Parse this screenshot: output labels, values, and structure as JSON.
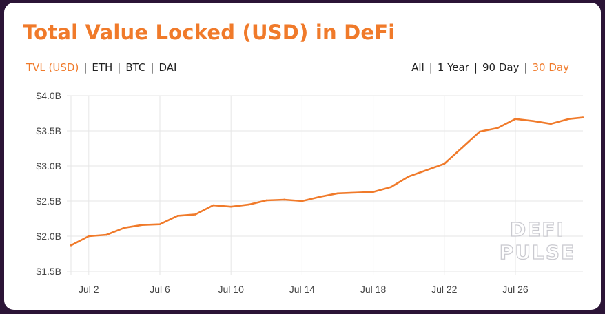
{
  "title": "Total Value Locked (USD) in DeFi",
  "metric_tabs": [
    {
      "label": "TVL (USD)",
      "active": true
    },
    {
      "label": "ETH",
      "active": false
    },
    {
      "label": "BTC",
      "active": false
    },
    {
      "label": "DAI",
      "active": false
    }
  ],
  "range_tabs": [
    {
      "label": "All",
      "active": false
    },
    {
      "label": "1 Year",
      "active": false
    },
    {
      "label": "90 Day",
      "active": false
    },
    {
      "label": "30 Day",
      "active": true
    }
  ],
  "watermark": [
    "DEFI",
    "PULSE"
  ],
  "colors": {
    "accent": "#f07a2a",
    "line": "#f07a2a",
    "grid": "#e6e6e6",
    "frame": "#2b1436"
  },
  "chart_data": {
    "type": "line",
    "title": "Total Value Locked (USD) in DeFi",
    "xlabel": "",
    "ylabel": "",
    "ylim": [
      1.5,
      4.0
    ],
    "y_ticks": [
      1.5,
      2.0,
      2.5,
      3.0,
      3.5,
      4.0
    ],
    "y_tick_labels": [
      "$1.5B",
      "$2.0B",
      "$2.5B",
      "$3.0B",
      "$3.5B",
      "$4.0B"
    ],
    "x_ticks": [
      2,
      6,
      10,
      14,
      18,
      22,
      26
    ],
    "x_tick_labels": [
      "Jul 2",
      "Jul 6",
      "Jul 10",
      "Jul 14",
      "Jul 18",
      "Jul 22",
      "Jul 26"
    ],
    "x_unit": "July day",
    "xlim": [
      1,
      29.8
    ],
    "grid": true,
    "series": [
      {
        "x": [
          1,
          2,
          3,
          4,
          5,
          6,
          7,
          8,
          9,
          10,
          11,
          12,
          13,
          14,
          15,
          16,
          17,
          18,
          19,
          20,
          21,
          22,
          23,
          24,
          25,
          26,
          27,
          28,
          29,
          29.8
        ],
        "values": [
          1.87,
          2.0,
          2.02,
          2.12,
          2.16,
          2.17,
          2.29,
          2.31,
          2.44,
          2.42,
          2.45,
          2.51,
          2.52,
          2.5,
          2.56,
          2.61,
          2.62,
          2.63,
          2.7,
          2.85,
          2.94,
          3.03,
          3.26,
          3.49,
          3.54,
          3.67,
          3.64,
          3.6,
          3.67,
          3.69
        ]
      }
    ]
  }
}
